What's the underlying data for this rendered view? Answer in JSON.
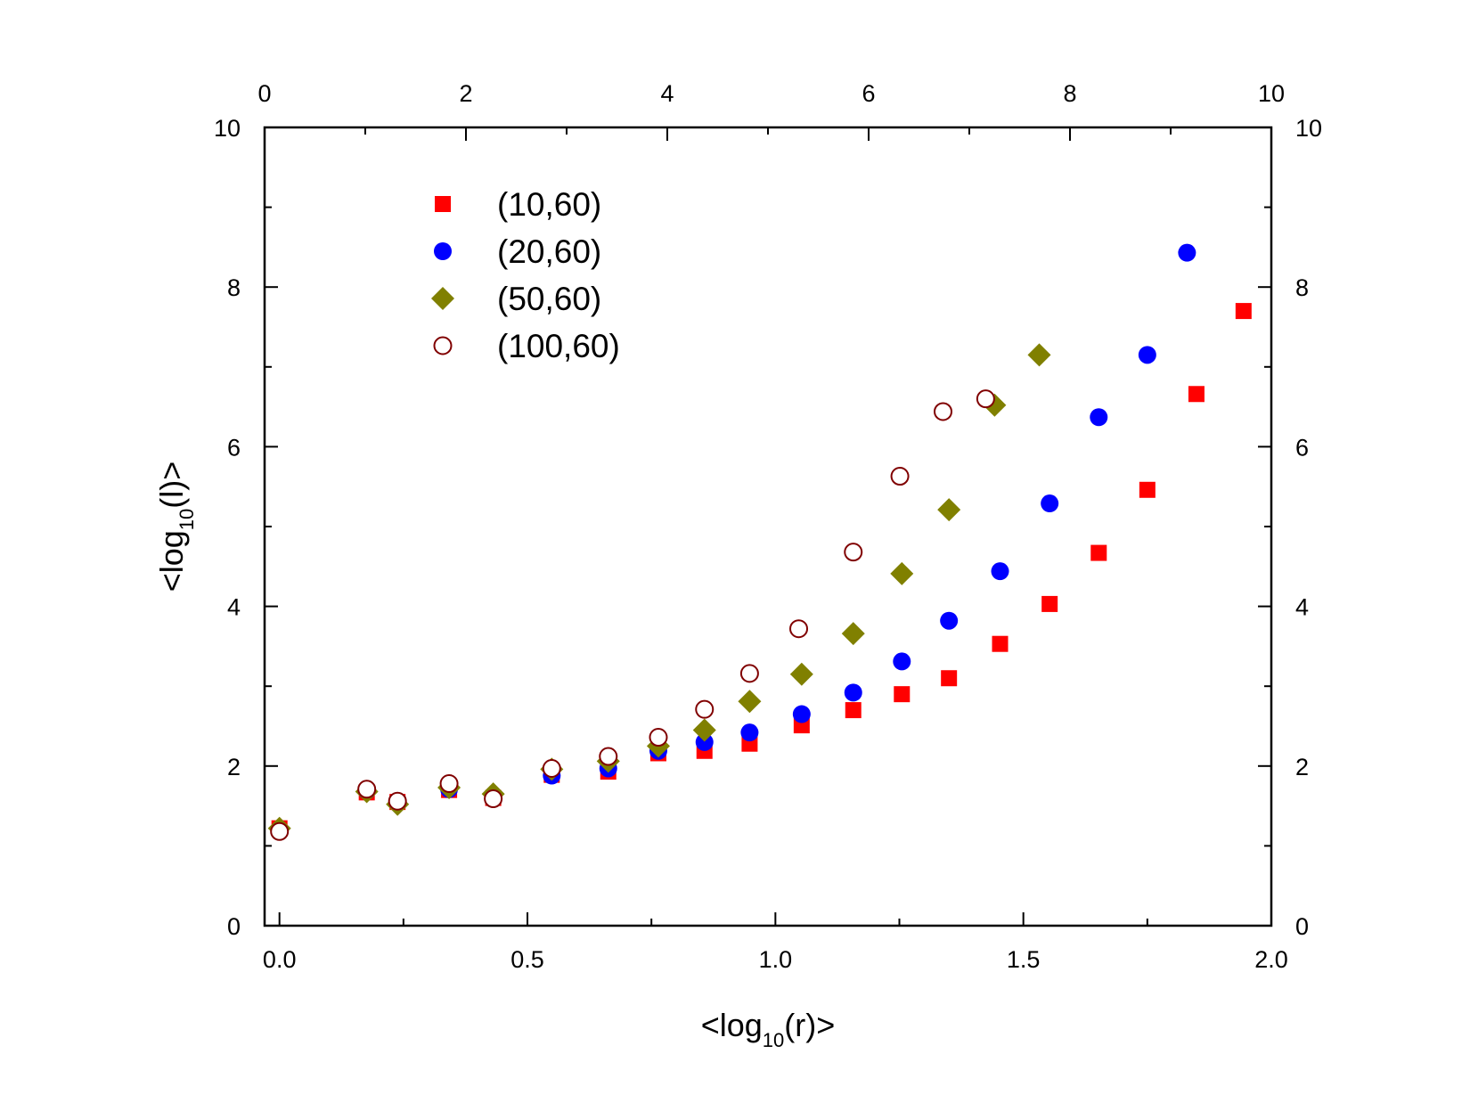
{
  "chart_data": {
    "type": "scatter",
    "xlabel": {
      "prefix": "<log",
      "sub": "10",
      "suffix": "(r)>"
    },
    "ylabel": {
      "prefix": "<log",
      "sub": "10",
      "suffix": "(l)>"
    },
    "xlim": [
      -0.03,
      2.0
    ],
    "ylim": [
      0,
      10
    ],
    "x_ticks": [
      "0.0",
      "0.5",
      "1.0",
      "1.5",
      "2.0"
    ],
    "x_tick_values": [
      0.0,
      0.5,
      1.0,
      1.5,
      2.0
    ],
    "y_ticks": [
      "0",
      "2",
      "4",
      "6",
      "8",
      "10"
    ],
    "y_tick_values": [
      0,
      2,
      4,
      6,
      8,
      10
    ],
    "top_axis": {
      "range": [
        0,
        10
      ],
      "ticks": [
        "0",
        "2",
        "4",
        "6",
        "8",
        "10"
      ],
      "tick_values": [
        0,
        2,
        4,
        6,
        8,
        10
      ]
    },
    "right_axis": {
      "ticks": [
        "0",
        "2",
        "4",
        "6",
        "8",
        "10"
      ],
      "tick_values": [
        0,
        2,
        4,
        6,
        8,
        10
      ]
    },
    "legend_position": "top-left",
    "series": [
      {
        "name": "(10,60)",
        "marker": "square",
        "color": "#ff0000",
        "filled": true,
        "x": [
          0.0,
          0.176,
          0.238,
          0.342,
          0.431,
          0.549,
          0.663,
          0.764,
          0.857,
          0.948,
          1.053,
          1.157,
          1.255,
          1.35,
          1.453,
          1.553,
          1.652,
          1.75,
          1.849,
          1.944
        ],
        "y": [
          1.22,
          1.67,
          1.55,
          1.7,
          1.6,
          1.89,
          1.93,
          2.16,
          2.19,
          2.28,
          2.51,
          2.7,
          2.9,
          3.1,
          3.53,
          4.03,
          4.67,
          5.46,
          6.66,
          7.7
        ]
      },
      {
        "name": "(20,60)",
        "marker": "circle",
        "color": "#0000ff",
        "filled": true,
        "x": [
          0.0,
          0.176,
          0.238,
          0.342,
          0.431,
          0.549,
          0.663,
          0.764,
          0.857,
          0.948,
          1.053,
          1.157,
          1.255,
          1.35,
          1.453,
          1.553,
          1.652,
          1.75,
          1.83
        ],
        "y": [
          1.2,
          1.69,
          1.55,
          1.71,
          1.61,
          1.88,
          1.97,
          2.19,
          2.3,
          2.42,
          2.65,
          2.92,
          3.31,
          3.82,
          4.44,
          5.29,
          6.37,
          7.15,
          8.43
        ]
      },
      {
        "name": "(50,60)",
        "marker": "diamond",
        "color": "#808000",
        "filled": true,
        "x": [
          0.0,
          0.176,
          0.238,
          0.342,
          0.431,
          0.549,
          0.663,
          0.764,
          0.857,
          0.948,
          1.053,
          1.157,
          1.255,
          1.35,
          1.442,
          1.532
        ],
        "y": [
          1.22,
          1.68,
          1.52,
          1.73,
          1.65,
          1.96,
          2.06,
          2.25,
          2.45,
          2.81,
          3.15,
          3.66,
          4.41,
          5.21,
          6.52,
          7.15
        ]
      },
      {
        "name": "(100,60)",
        "marker": "circle-open",
        "color": "#800000",
        "filled": false,
        "x": [
          0.0,
          0.176,
          0.238,
          0.342,
          0.431,
          0.549,
          0.663,
          0.764,
          0.857,
          0.948,
          1.047,
          1.157,
          1.251,
          1.338,
          1.424
        ],
        "y": [
          1.18,
          1.71,
          1.56,
          1.78,
          1.59,
          1.97,
          2.12,
          2.36,
          2.71,
          3.16,
          3.72,
          4.68,
          5.63,
          6.44,
          6.6
        ]
      }
    ]
  }
}
